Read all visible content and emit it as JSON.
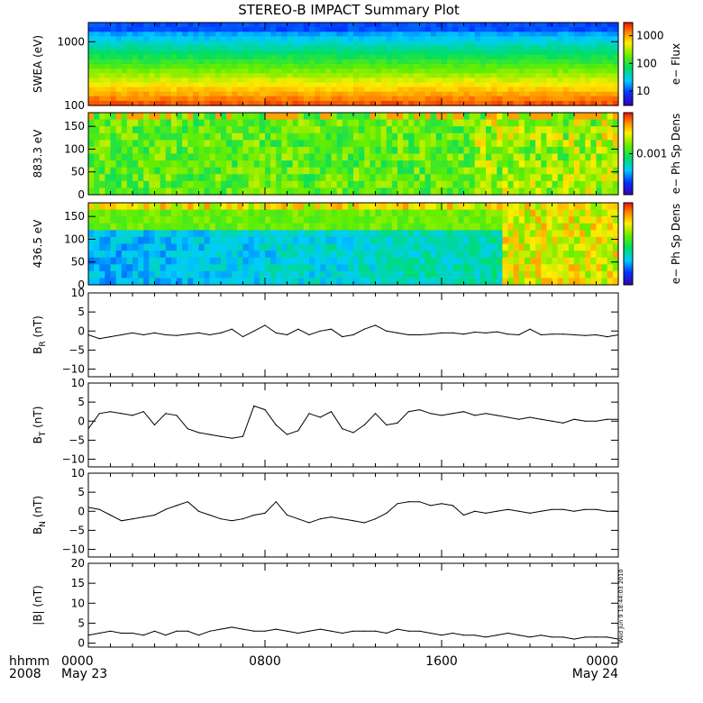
{
  "title": "STEREO-B IMPACT Summary Plot",
  "stamp": "Wed Jun  9 18:44:03 2010",
  "x_axis": {
    "row1_label": "hhmm",
    "row2_label": "2008",
    "ticks": [
      {
        "hour": 0,
        "time": "0000",
        "date": "May 23"
      },
      {
        "hour": 8,
        "time": "0800",
        "date": ""
      },
      {
        "hour": 16,
        "time": "1600",
        "date": ""
      },
      {
        "hour": 24,
        "time": "0000",
        "date": "May 24"
      }
    ]
  },
  "chart_data": [
    {
      "type": "heatmap",
      "ylabel": "SWEA (eV)",
      "yscale": "log",
      "ylim": [
        100,
        2000
      ],
      "yticks": [
        {
          "v": 100,
          "label": "100"
        },
        {
          "v": 1000,
          "label": "1000"
        }
      ],
      "colorbar": {
        "label": "e− Flux",
        "scale": "log",
        "range": [
          3,
          3000
        ],
        "ticks": [
          {
            "v": 10,
            "label": "10"
          },
          {
            "v": 100,
            "label": "100"
          },
          {
            "v": 1000,
            "label": "1000"
          }
        ]
      }
    },
    {
      "type": "heatmap",
      "ylabel": "883.3 eV",
      "ylim": [
        0,
        180
      ],
      "yticks": [
        {
          "v": 0,
          "label": "0"
        },
        {
          "v": 50,
          "label": "50"
        },
        {
          "v": 100,
          "label": "100"
        },
        {
          "v": 150,
          "label": "150"
        }
      ],
      "colorbar": {
        "label": "e− Ph Sp Dens",
        "scale": "log",
        "range": [
          0.0002,
          0.005
        ],
        "ticks": [
          {
            "v": 0.001,
            "label": "0.001"
          }
        ]
      }
    },
    {
      "type": "heatmap",
      "ylabel": "436.5 eV",
      "ylim": [
        0,
        180
      ],
      "yticks": [
        {
          "v": 0,
          "label": "0"
        },
        {
          "v": 50,
          "label": "50"
        },
        {
          "v": 100,
          "label": "100"
        },
        {
          "v": 150,
          "label": "150"
        }
      ],
      "colorbar": {
        "label": "e− Ph Sp Dens",
        "scale": "log",
        "ticks": []
      }
    },
    {
      "type": "line",
      "ylabel_main": "B",
      "ylabel_sub": "R",
      "ylabel_unit": " (nT)",
      "ylim": [
        -12,
        10
      ],
      "yticks": [
        {
          "v": -10,
          "label": "−10"
        },
        {
          "v": -5,
          "label": "−5"
        },
        {
          "v": 0,
          "label": "0"
        },
        {
          "v": 5,
          "label": "5"
        },
        {
          "v": 10,
          "label": "10"
        }
      ],
      "x": [
        0,
        0.5,
        1,
        1.5,
        2,
        2.5,
        3,
        3.5,
        4,
        4.5,
        5,
        5.5,
        6,
        6.5,
        7,
        7.5,
        8,
        8.5,
        9,
        9.5,
        10,
        10.5,
        11,
        11.5,
        12,
        12.5,
        13,
        13.5,
        14,
        14.5,
        15,
        15.5,
        16,
        16.5,
        17,
        17.5,
        18,
        18.5,
        19,
        19.5,
        20,
        20.5,
        21,
        21.5,
        22,
        22.5,
        23,
        23.5,
        24
      ],
      "y": [
        -1,
        -2,
        -1.5,
        -1,
        -0.5,
        -1,
        -0.5,
        -1,
        -1.2,
        -0.8,
        -0.5,
        -1,
        -0.5,
        0.5,
        -1.5,
        0,
        1.5,
        -0.5,
        -1,
        0.5,
        -1,
        0,
        0.5,
        -1.5,
        -1,
        0.5,
        1.5,
        0,
        -0.5,
        -1,
        -1,
        -0.8,
        -0.5,
        -0.5,
        -0.8,
        -0.3,
        -0.5,
        -0.2,
        -0.8,
        -1,
        0.5,
        -1,
        -0.8,
        -0.8,
        -1,
        -1.2,
        -1,
        -1.5,
        -1
      ]
    },
    {
      "type": "line",
      "ylabel_main": "B",
      "ylabel_sub": "T",
      "ylabel_unit": " (nT)",
      "ylim": [
        -12,
        10
      ],
      "yticks": [
        {
          "v": -10,
          "label": "−10"
        },
        {
          "v": -5,
          "label": "−5"
        },
        {
          "v": 0,
          "label": "0"
        },
        {
          "v": 5,
          "label": "5"
        },
        {
          "v": 10,
          "label": "10"
        }
      ],
      "x": [
        0,
        0.5,
        1,
        1.5,
        2,
        2.5,
        3,
        3.5,
        4,
        4.5,
        5,
        5.5,
        6,
        6.5,
        7,
        7.5,
        8,
        8.5,
        9,
        9.5,
        10,
        10.5,
        11,
        11.5,
        12,
        12.5,
        13,
        13.5,
        14,
        14.5,
        15,
        15.5,
        16,
        16.5,
        17,
        17.5,
        18,
        18.5,
        19,
        19.5,
        20,
        20.5,
        21,
        21.5,
        22,
        22.5,
        23,
        23.5,
        24
      ],
      "y": [
        -2,
        2,
        2.5,
        2,
        1.5,
        2.5,
        -1,
        2,
        1.5,
        -2,
        -3,
        -3.5,
        -4,
        -4.5,
        -4,
        4,
        3,
        -1,
        -3.5,
        -2.5,
        2,
        1,
        2.5,
        -2,
        -3,
        -1,
        2,
        -1,
        -0.5,
        2.5,
        3,
        2,
        1.5,
        2,
        2.5,
        1.5,
        2,
        1.5,
        1,
        0.5,
        1,
        0.5,
        0,
        -0.5,
        0.5,
        0,
        0,
        0.5,
        0.5
      ]
    },
    {
      "type": "line",
      "ylabel_main": "B",
      "ylabel_sub": "N",
      "ylabel_unit": " (nT)",
      "ylim": [
        -12,
        10
      ],
      "yticks": [
        {
          "v": -10,
          "label": "−10"
        },
        {
          "v": -5,
          "label": "−5"
        },
        {
          "v": 0,
          "label": "0"
        },
        {
          "v": 5,
          "label": "5"
        },
        {
          "v": 10,
          "label": "10"
        }
      ],
      "x": [
        0,
        0.5,
        1,
        1.5,
        2,
        2.5,
        3,
        3.5,
        4,
        4.5,
        5,
        5.5,
        6,
        6.5,
        7,
        7.5,
        8,
        8.5,
        9,
        9.5,
        10,
        10.5,
        11,
        11.5,
        12,
        12.5,
        13,
        13.5,
        14,
        14.5,
        15,
        15.5,
        16,
        16.5,
        17,
        17.5,
        18,
        18.5,
        19,
        19.5,
        20,
        20.5,
        21,
        21.5,
        22,
        22.5,
        23,
        23.5,
        24
      ],
      "y": [
        1,
        0.5,
        -1,
        -2.5,
        -2,
        -1.5,
        -1,
        0.5,
        1.5,
        2.5,
        0,
        -1,
        -2,
        -2.5,
        -2,
        -1,
        -0.5,
        2.5,
        -1,
        -2,
        -3,
        -2,
        -1.5,
        -2,
        -2.5,
        -3,
        -2,
        -0.5,
        2,
        2.5,
        2.5,
        1.5,
        2,
        1.5,
        -1,
        0,
        -0.5,
        0,
        0.5,
        0,
        -0.5,
        0,
        0.5,
        0.5,
        0,
        0.5,
        0.5,
        0,
        0
      ]
    },
    {
      "type": "line",
      "ylabel_main": "|B|",
      "ylabel_sub": "",
      "ylabel_unit": " (nT)",
      "ylim": [
        -1,
        20
      ],
      "yticks": [
        {
          "v": 0,
          "label": "0"
        },
        {
          "v": 5,
          "label": "5"
        },
        {
          "v": 10,
          "label": "10"
        },
        {
          "v": 15,
          "label": "15"
        },
        {
          "v": 20,
          "label": "20"
        }
      ],
      "x": [
        0,
        0.5,
        1,
        1.5,
        2,
        2.5,
        3,
        3.5,
        4,
        4.5,
        5,
        5.5,
        6,
        6.5,
        7,
        7.5,
        8,
        8.5,
        9,
        9.5,
        10,
        10.5,
        11,
        11.5,
        12,
        12.5,
        13,
        13.5,
        14,
        14.5,
        15,
        15.5,
        16,
        16.5,
        17,
        17.5,
        18,
        18.5,
        19,
        19.5,
        20,
        20.5,
        21,
        21.5,
        22,
        22.5,
        23,
        23.5,
        24
      ],
      "y": [
        2,
        2.5,
        3,
        2.5,
        2.5,
        2,
        3,
        2,
        3,
        3,
        2,
        3,
        3.5,
        4,
        3.5,
        3,
        3,
        3.5,
        3,
        2.5,
        3,
        3.5,
        3,
        2.5,
        3,
        3,
        3,
        2.5,
        3.5,
        3,
        3,
        2.5,
        2,
        2.5,
        2,
        2,
        1.5,
        2,
        2.5,
        2,
        1.5,
        2,
        1.5,
        1.5,
        1,
        1.5,
        1.5,
        1.5,
        1
      ]
    }
  ]
}
